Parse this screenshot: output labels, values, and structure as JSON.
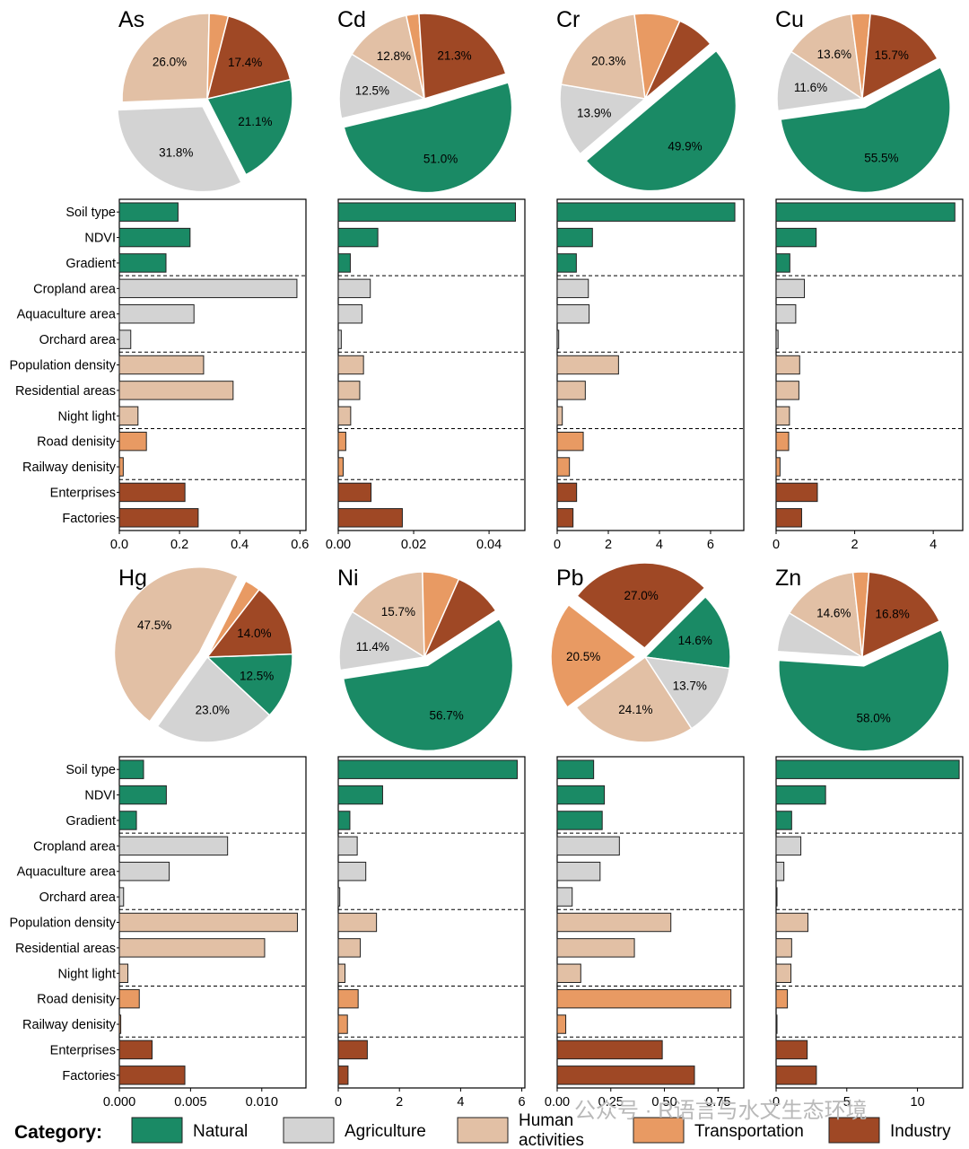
{
  "categories": {
    "Natural": "#1a8a65",
    "Agriculture": "#d3d3d3",
    "Human activities": "#e2c0a5",
    "Transportation": "#e89a63",
    "Industry": "#9f4825"
  },
  "factor_labels": [
    "Soil type",
    "NDVI",
    "Gradient",
    "Cropland area",
    "Aquaculture area",
    "Orchard area",
    "Population density",
    "Residential areas",
    "Night light",
    "Road denisity",
    "Railway denisity",
    "Enterprises",
    "Factories"
  ],
  "factor_categories": [
    "Natural",
    "Natural",
    "Natural",
    "Agriculture",
    "Agriculture",
    "Agriculture",
    "Human activities",
    "Human activities",
    "Human activities",
    "Transportation",
    "Transportation",
    "Industry",
    "Industry"
  ],
  "legend": {
    "title": "Category:",
    "items": [
      {
        "label": "Natural",
        "color": "#1a8a65"
      },
      {
        "label": "Agriculture",
        "color": "#d3d3d3"
      },
      {
        "label": "Human activities",
        "color": "#e2c0a5"
      },
      {
        "label": "Transportation",
        "color": "#e89a63"
      },
      {
        "label": "Industry",
        "color": "#9f4825"
      }
    ]
  },
  "watermark": "公众号 · R语言与水文生态环境",
  "chart_data": [
    {
      "type": "pie+bar",
      "title": "As",
      "startAngle": -13,
      "slices": [
        {
          "category": "Natural",
          "value": 21.1,
          "label": "21.1%"
        },
        {
          "category": "Agriculture",
          "value": 31.8,
          "label": "31.8%",
          "explode": true
        },
        {
          "category": "Human activities",
          "value": 26.0,
          "label": "26.0%"
        },
        {
          "category": "Transportation",
          "value": 3.6,
          "label": ""
        },
        {
          "category": "Industry",
          "value": 17.4,
          "label": "17.4%"
        }
      ],
      "xlim": [
        0,
        0.62
      ],
      "xticks": [
        0.0,
        0.2,
        0.4,
        0.6
      ],
      "xticklabels": [
        "0.0",
        "0.2",
        "0.4",
        "0.6"
      ],
      "values": [
        0.195,
        0.235,
        0.155,
        0.59,
        0.248,
        0.038,
        0.28,
        0.378,
        0.062,
        0.09,
        0.013,
        0.218,
        0.262
      ]
    },
    {
      "type": "pie+bar",
      "title": "Cd",
      "startAngle": -17,
      "slices": [
        {
          "category": "Natural",
          "value": 51.0,
          "label": "51.0%",
          "explode": true
        },
        {
          "category": "Agriculture",
          "value": 12.5,
          "label": "12.5%"
        },
        {
          "category": "Human activities",
          "value": 12.8,
          "label": "12.8%"
        },
        {
          "category": "Transportation",
          "value": 2.4,
          "label": ""
        },
        {
          "category": "Industry",
          "value": 21.3,
          "label": "21.3%"
        }
      ],
      "xlim": [
        0,
        0.0495
      ],
      "xticks": [
        0.0,
        0.02,
        0.04
      ],
      "xticklabels": [
        "0.00",
        "0.02",
        "0.04"
      ],
      "values": [
        0.047,
        0.0105,
        0.0032,
        0.0085,
        0.0063,
        0.0008,
        0.0067,
        0.0057,
        0.0033,
        0.002,
        0.0013,
        0.0087,
        0.017
      ]
    },
    {
      "type": "pie+bar",
      "title": "Cr",
      "startAngle": -40,
      "slices": [
        {
          "category": "Natural",
          "value": 49.9,
          "label": "49.9%",
          "explode": true
        },
        {
          "category": "Agriculture",
          "value": 13.9,
          "label": "13.9%"
        },
        {
          "category": "Human activities",
          "value": 20.3,
          "label": "20.3%"
        },
        {
          "category": "Transportation",
          "value": 8.7,
          "label": ""
        },
        {
          "category": "Industry",
          "value": 7.2,
          "label": ""
        }
      ],
      "xlim": [
        0,
        7.3
      ],
      "xticks": [
        0,
        2,
        4,
        6
      ],
      "xticklabels": [
        "0",
        "2",
        "4",
        "6"
      ],
      "values": [
        6.95,
        1.38,
        0.75,
        1.22,
        1.25,
        0.06,
        2.4,
        1.1,
        0.2,
        1.02,
        0.48,
        0.76,
        0.62
      ]
    },
    {
      "type": "pie+bar",
      "title": "Cu",
      "startAngle": -28,
      "slices": [
        {
          "category": "Natural",
          "value": 55.5,
          "label": "55.5%",
          "explode": true
        },
        {
          "category": "Agriculture",
          "value": 11.6,
          "label": "11.6%"
        },
        {
          "category": "Human activities",
          "value": 13.6,
          "label": "13.6%"
        },
        {
          "category": "Transportation",
          "value": 3.6,
          "label": ""
        },
        {
          "category": "Industry",
          "value": 15.7,
          "label": "15.7%"
        }
      ],
      "xlim": [
        0,
        4.75
      ],
      "xticks": [
        0,
        2,
        4
      ],
      "xticklabels": [
        "0",
        "2",
        "4"
      ],
      "values": [
        4.55,
        1.02,
        0.35,
        0.72,
        0.5,
        0.05,
        0.6,
        0.58,
        0.34,
        0.32,
        0.1,
        1.05,
        0.65
      ]
    },
    {
      "type": "pie+bar",
      "title": "Hg",
      "startAngle": -2,
      "slices": [
        {
          "category": "Natural",
          "value": 12.5,
          "label": "12.5%"
        },
        {
          "category": "Agriculture",
          "value": 23.0,
          "label": "23.0%"
        },
        {
          "category": "Human activities",
          "value": 47.5,
          "label": "47.5%",
          "explode": true
        },
        {
          "category": "Transportation",
          "value": 3.0,
          "label": ""
        },
        {
          "category": "Industry",
          "value": 14.0,
          "label": "14.0%"
        }
      ],
      "xlim": [
        0,
        0.0131
      ],
      "xticks": [
        0.0,
        0.005,
        0.01
      ],
      "xticklabels": [
        "0.000",
        "0.005",
        "0.010"
      ],
      "values": [
        0.0017,
        0.0033,
        0.0012,
        0.0076,
        0.0035,
        0.0003,
        0.0125,
        0.0102,
        0.0006,
        0.0014,
        0.0001,
        0.0023,
        0.0046
      ]
    },
    {
      "type": "pie+bar",
      "title": "Ni",
      "startAngle": -33,
      "slices": [
        {
          "category": "Natural",
          "value": 56.7,
          "label": "56.7%",
          "explode": true
        },
        {
          "category": "Agriculture",
          "value": 11.4,
          "label": "11.4%"
        },
        {
          "category": "Human activities",
          "value": 15.7,
          "label": "15.7%"
        },
        {
          "category": "Transportation",
          "value": 7.0,
          "label": ""
        },
        {
          "category": "Industry",
          "value": 9.2,
          "label": ""
        }
      ],
      "xlim": [
        0,
        6.1
      ],
      "xticks": [
        0,
        2,
        4,
        6
      ],
      "xticklabels": [
        "0",
        "2",
        "4",
        "6"
      ],
      "values": [
        5.85,
        1.45,
        0.38,
        0.62,
        0.9,
        0.05,
        1.25,
        0.72,
        0.22,
        0.65,
        0.3,
        0.95,
        0.32
      ]
    },
    {
      "type": "pie+bar",
      "title": "Pb",
      "startAngle": -45,
      "slices": [
        {
          "category": "Natural",
          "value": 14.6,
          "label": "14.6%"
        },
        {
          "category": "Agriculture",
          "value": 13.7,
          "label": "13.7%"
        },
        {
          "category": "Human activities",
          "value": 24.1,
          "label": "24.1%"
        },
        {
          "category": "Transportation",
          "value": 20.5,
          "label": "20.5%",
          "explode": true
        },
        {
          "category": "Industry",
          "value": 27.0,
          "label": "27.0%",
          "explode": true
        }
      ],
      "xlim": [
        0,
        0.87
      ],
      "xticks": [
        0.0,
        0.25,
        0.5,
        0.75
      ],
      "xticklabels": [
        "0.00",
        "0.25",
        "0.50",
        "0.75"
      ],
      "values": [
        0.17,
        0.22,
        0.21,
        0.29,
        0.2,
        0.07,
        0.53,
        0.36,
        0.11,
        0.81,
        0.04,
        0.49,
        0.64
      ]
    },
    {
      "type": "pie+bar",
      "title": "Zn",
      "startAngle": -25,
      "slices": [
        {
          "category": "Natural",
          "value": 58.0,
          "label": "58.0%",
          "explode": true
        },
        {
          "category": "Agriculture",
          "value": 7.6,
          "label": ""
        },
        {
          "category": "Human activities",
          "value": 14.6,
          "label": "14.6%"
        },
        {
          "category": "Transportation",
          "value": 3.0,
          "label": ""
        },
        {
          "category": "Industry",
          "value": 16.8,
          "label": "16.8%"
        }
      ],
      "xlim": [
        0,
        13.2
      ],
      "xticks": [
        0,
        5,
        10
      ],
      "xticklabels": [
        "0",
        "5",
        "10"
      ],
      "values": [
        12.95,
        3.5,
        1.1,
        1.75,
        0.55,
        0.05,
        2.25,
        1.1,
        1.05,
        0.8,
        0.05,
        2.2,
        2.85
      ]
    }
  ]
}
